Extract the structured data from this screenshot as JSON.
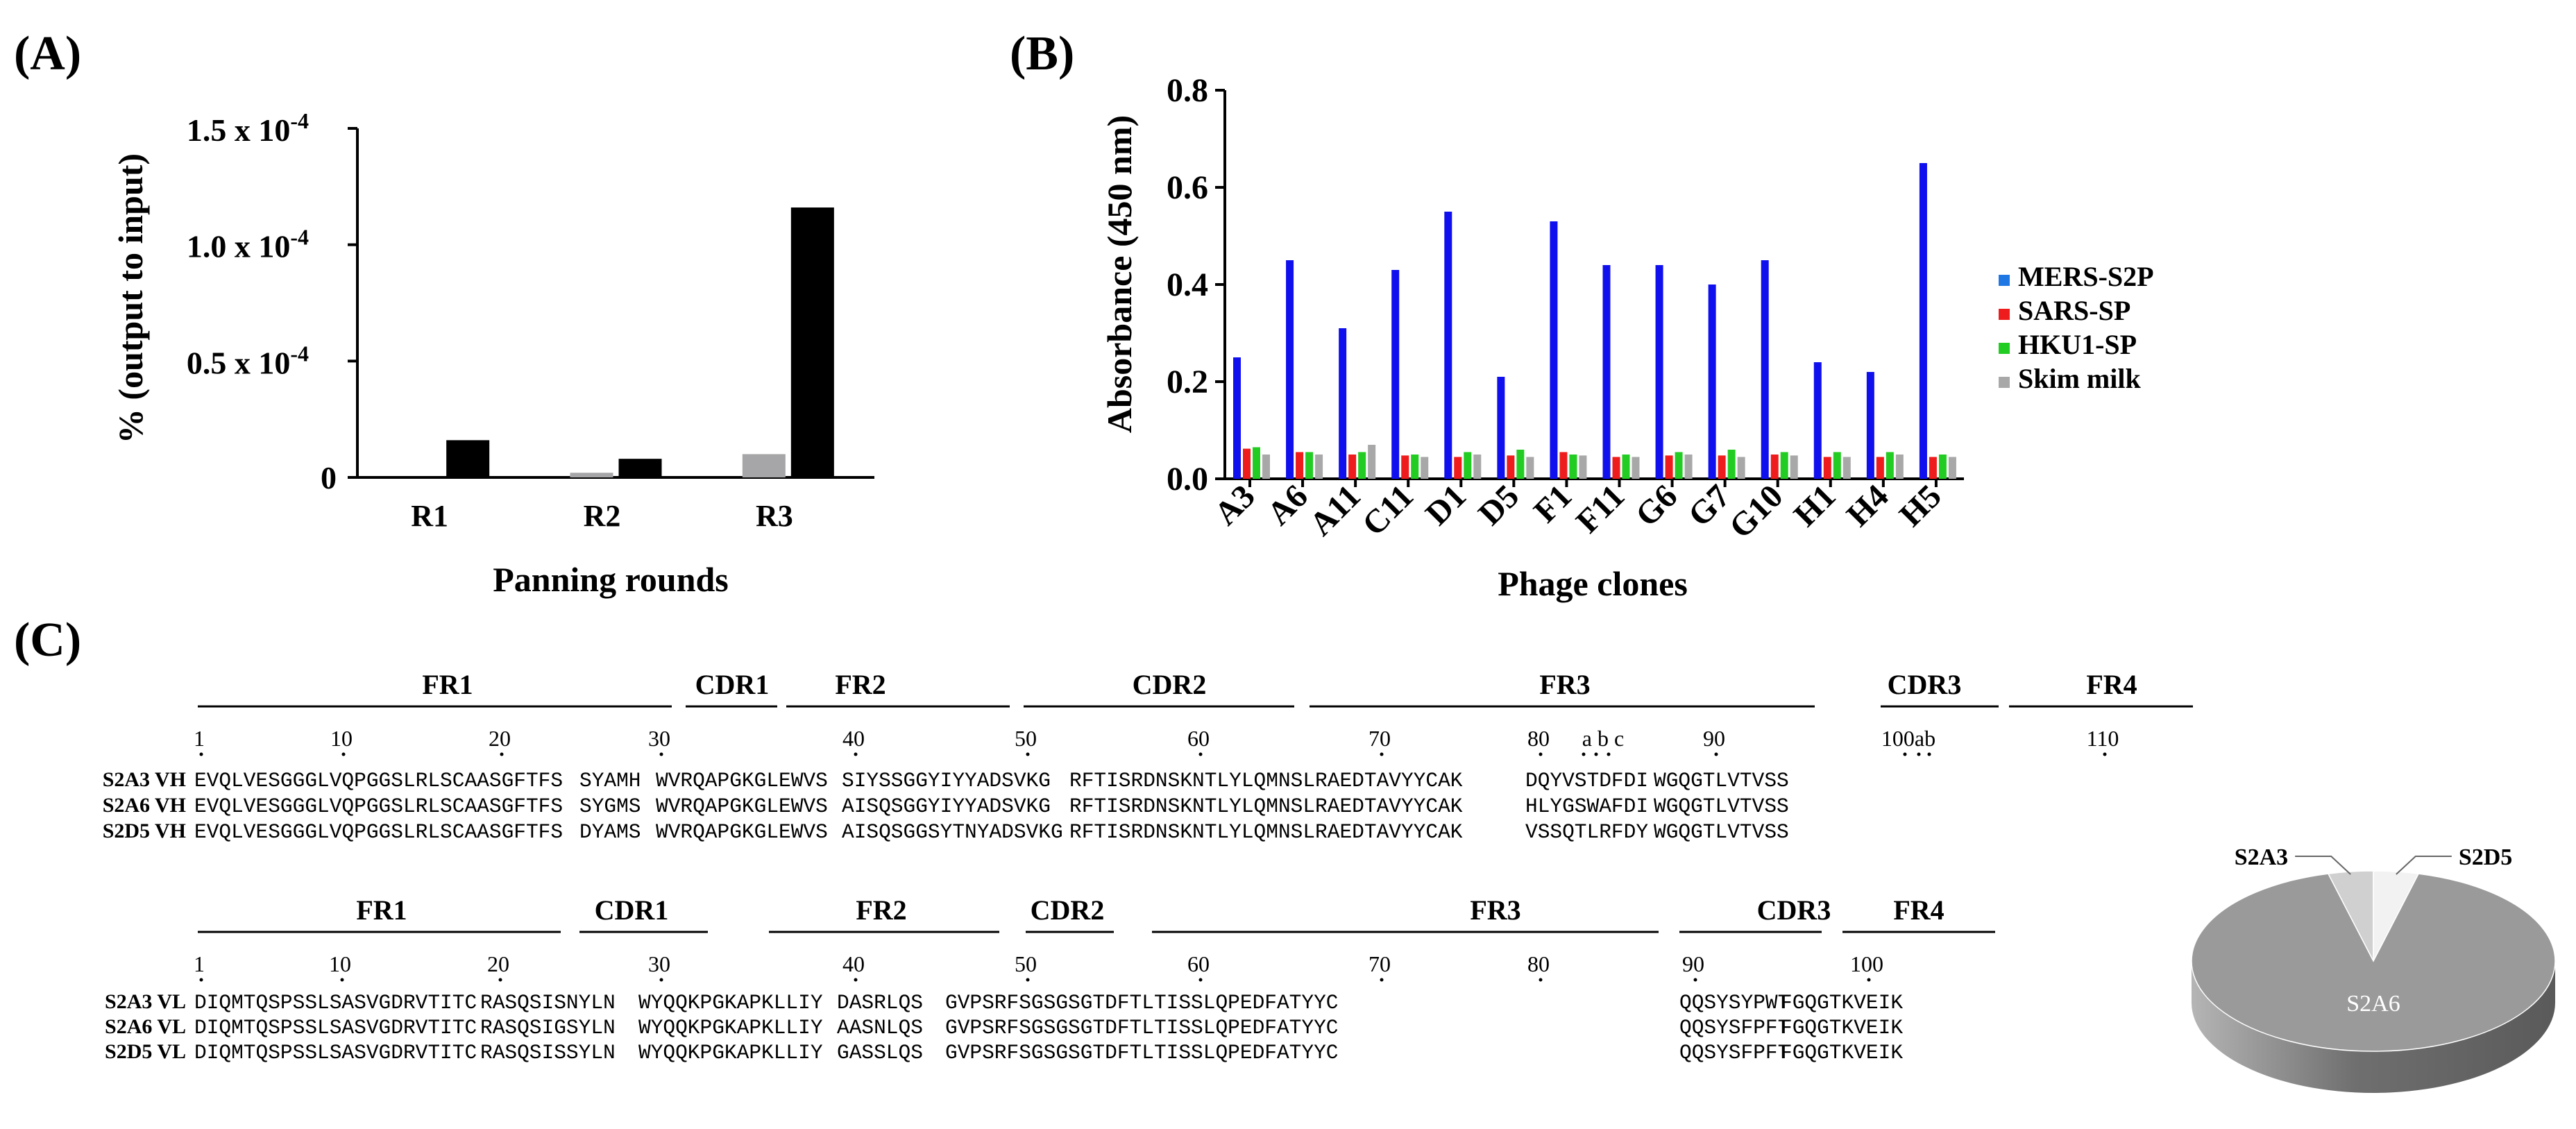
{
  "panel_labels": {
    "a": "(A)",
    "b": "(B)",
    "c": "(C)"
  },
  "chart_data": [
    {
      "id": "A",
      "type": "bar",
      "title": "",
      "xlabel": "Panning rounds",
      "ylabel": "% (output to input)",
      "categories": [
        "R1",
        "R2",
        "R3"
      ],
      "series": [
        {
          "name": "series-1",
          "color": "#a6a6a8",
          "values": [
            0.0,
            0.002,
            0.01
          ]
        },
        {
          "name": "series-2",
          "color": "#000000",
          "values": [
            0.016,
            0.008,
            0.116
          ]
        }
      ],
      "ylim": [
        0,
        0.15
      ],
      "y_ticks": [
        {
          "value": 0,
          "label": "0"
        },
        {
          "value": 0.05,
          "label": "0.5 x 10",
          "exp": "-4"
        },
        {
          "value": 0.1,
          "label": "1.0 x 10",
          "exp": "-4"
        },
        {
          "value": 0.15,
          "label": "1.5 x 10",
          "exp": "-4"
        }
      ]
    },
    {
      "id": "B",
      "type": "bar",
      "title": "",
      "xlabel": "Phage clones",
      "ylabel": "Absorbance (450 nm)",
      "categories": [
        "A3",
        "A6",
        "A11",
        "C11",
        "D1",
        "D5",
        "F1",
        "F11",
        "G6",
        "G7",
        "G10",
        "H1",
        "H4",
        "H5"
      ],
      "series": [
        {
          "name": "MERS-S2P",
          "color": "#1010ee",
          "values": [
            0.25,
            0.45,
            0.31,
            0.43,
            0.55,
            0.21,
            0.53,
            0.44,
            0.44,
            0.4,
            0.45,
            0.24,
            0.22,
            0.65
          ]
        },
        {
          "name": "SARS-SP",
          "color": "#ee1c1c",
          "values": [
            0.062,
            0.055,
            0.05,
            0.048,
            0.045,
            0.048,
            0.055,
            0.045,
            0.048,
            0.048,
            0.05,
            0.045,
            0.045,
            0.045
          ]
        },
        {
          "name": "HKU1-SP",
          "color": "#22cc22",
          "values": [
            0.065,
            0.055,
            0.055,
            0.05,
            0.055,
            0.06,
            0.05,
            0.05,
            0.055,
            0.06,
            0.055,
            0.055,
            0.055,
            0.05
          ]
        },
        {
          "name": "Skim milk",
          "color": "#a8a8a8",
          "values": [
            0.05,
            0.05,
            0.07,
            0.045,
            0.05,
            0.045,
            0.048,
            0.045,
            0.05,
            0.045,
            0.048,
            0.045,
            0.05,
            0.045
          ]
        }
      ],
      "legend_colors": [
        "#1f77e4",
        "#ee1c1c",
        "#22cc22",
        "#a8a8a8"
      ],
      "legend_position": "right",
      "ylim": [
        0,
        0.8
      ],
      "y_ticks": [
        "0.0",
        "0.2",
        "0.4",
        "0.6",
        "0.8"
      ]
    },
    {
      "id": "C-pie",
      "type": "pie",
      "labels": [
        "S2A6",
        "S2A3",
        "S2D5"
      ],
      "values": [
        92,
        4,
        4
      ],
      "colors": [
        "#9a9a9a",
        "#d0d0d0",
        "#f2f2f2"
      ]
    }
  ],
  "alignment_vh": {
    "regions": [
      "FR1",
      "CDR1",
      "FR2",
      "CDR2",
      "FR3",
      "CDR3",
      "FR4"
    ],
    "numbers": [
      "1",
      "10",
      "20",
      "30",
      "40",
      "50",
      "60",
      "70",
      "80",
      "a b c",
      "90",
      "100ab",
      "110"
    ],
    "rows": [
      {
        "name": "S2A3 VH",
        "segs": [
          "EVQLVESGGGLVQPGGSLRLSCAASGFTFS",
          "SYAMH",
          "WVRQAPGKGLEWVS",
          "SIYSSGGYIYYADSVKG",
          "RFTISRDNSKNTLYLQMNSLRAEDTAVYYCAK",
          "DQYVSTDFDI",
          "WGQGTLVTVSS"
        ]
      },
      {
        "name": "S2A6 VH",
        "segs": [
          "EVQLVESGGGLVQPGGSLRLSCAASGFTFS",
          "SYGMS",
          "WVRQAPGKGLEWVS",
          "AISQSGGYIYYADSVKG",
          "RFTISRDNSKNTLYLQMNSLRAEDTAVYYCAK",
          "HLYGSWAFDI",
          "WGQGTLVTVSS"
        ]
      },
      {
        "name": "S2D5 VH",
        "segs": [
          "EVQLVESGGGLVQPGGSLRLSCAASGFTFS",
          "DYAMS",
          "WVRQAPGKGLEWVS",
          "AISQSGGSYTNYADSVKG",
          "RFTISRDNSKNTLYLQMNSLRAEDTAVYYCAK",
          "VSSQTLRFDY",
          "WGQGTLVTVSS"
        ]
      }
    ]
  },
  "alignment_vl": {
    "regions": [
      "FR1",
      "CDR1",
      "FR2",
      "CDR2",
      "FR3",
      "CDR3",
      "FR4"
    ],
    "numbers": [
      "1",
      "10",
      "20",
      "30",
      "40",
      "50",
      "60",
      "70",
      "80",
      "90",
      "100"
    ],
    "rows": [
      {
        "name": "S2A3 VL",
        "segs": [
          "DIQMTQSPSSLSASVGDRVTITC",
          "RASQSISNYLN",
          "WYQQKPGKAPKLLIY",
          "DASRLQS",
          "GVPSRFSGSGSGTDFTLTISSLQPEDFATYYC",
          "QQSYSYPWT",
          "FGQGTKVEIK"
        ]
      },
      {
        "name": "S2A6 VL",
        "segs": [
          "DIQMTQSPSSLSASVGDRVTITC",
          "RASQSIGSYLN",
          "WYQQKPGKAPKLLIY",
          "AASNLQS",
          "GVPSRFSGSGSGTDFTLTISSLQPEDFATYYC",
          "QQSYSFPFT",
          "FGQGTKVEIK"
        ]
      },
      {
        "name": "S2D5 VL",
        "segs": [
          "DIQMTQSPSSLSASVGDRVTITC",
          "RASQSISSYLN",
          "WYQQKPGKAPKLLIY",
          "GASSLQS",
          "GVPSRFSGSGSGTDFTLTISSLQPEDFATYYC",
          "QQSYSFPFT",
          "FGQGTKVEIK"
        ]
      }
    ]
  }
}
